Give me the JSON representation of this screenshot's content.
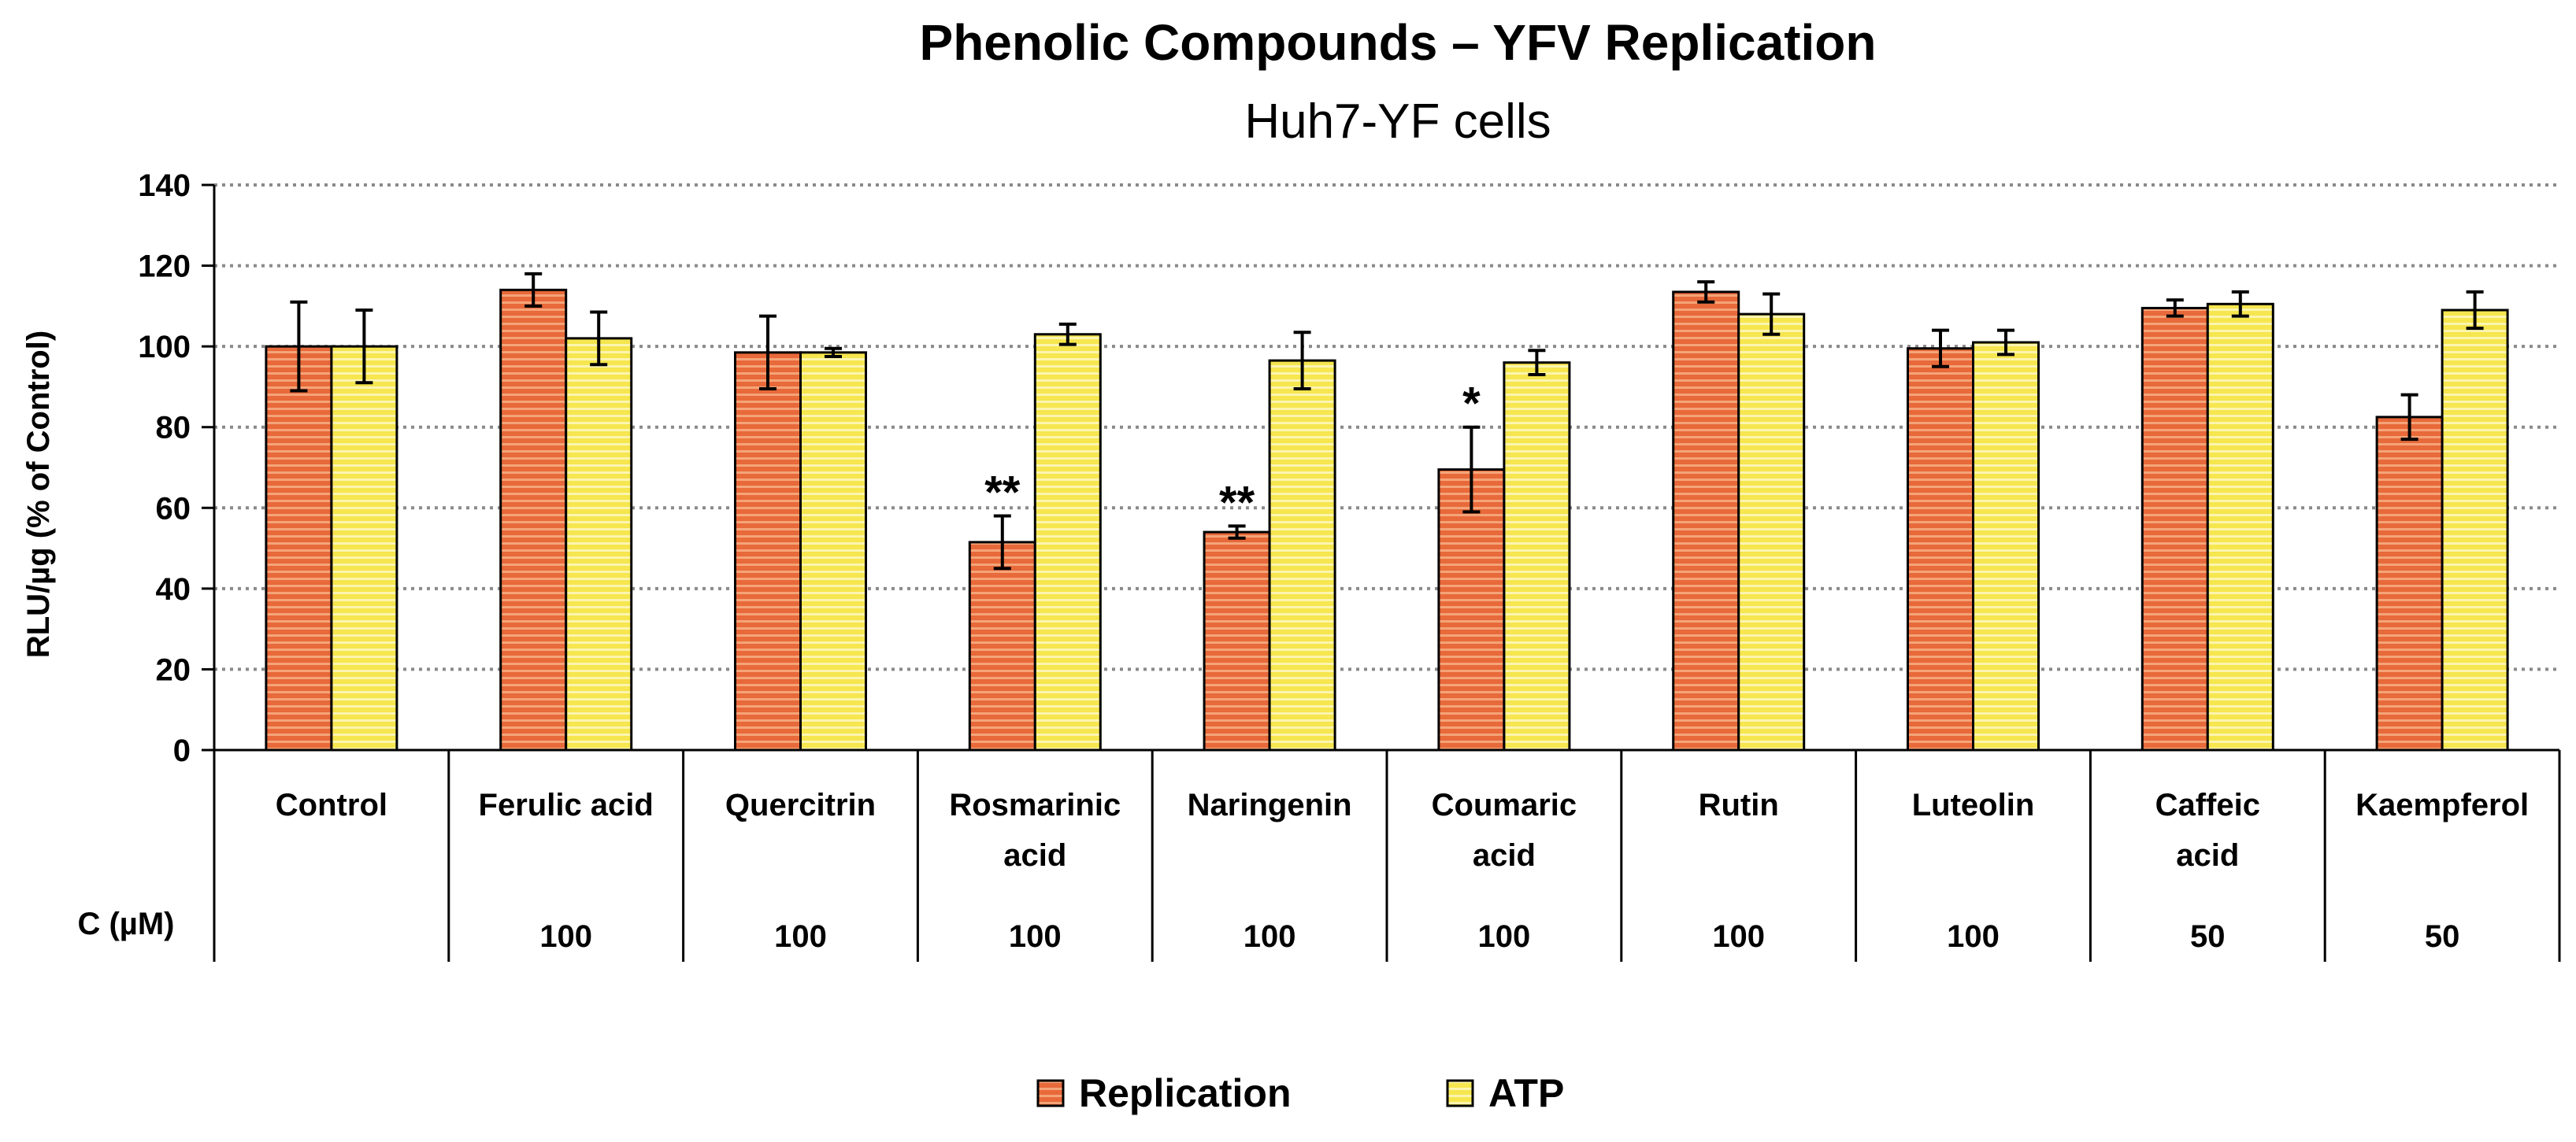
{
  "chart_data": {
    "type": "bar",
    "title": "Phenolic Compounds – YFV Replication",
    "subtitle": "Huh7-YF cells",
    "ylabel": "RLU/µg (% of Control)",
    "ylim": [
      0,
      140
    ],
    "yticks": [
      0,
      20,
      40,
      60,
      80,
      100,
      120,
      140
    ],
    "grid": true,
    "concentration_label": "C (µM)",
    "categories": [
      [
        "Control"
      ],
      [
        "Ferulic acid"
      ],
      [
        "Quercitrin"
      ],
      [
        "Rosmarinic",
        "acid"
      ],
      [
        "Naringenin"
      ],
      [
        "Coumaric",
        "acid"
      ],
      [
        "Rutin"
      ],
      [
        "Luteolin"
      ],
      [
        "Caffeic",
        "acid"
      ],
      [
        "Kaempferol"
      ]
    ],
    "concentrations": [
      "",
      "100",
      "100",
      "100",
      "100",
      "100",
      "100",
      "100",
      "50",
      "50"
    ],
    "series": [
      {
        "name": "Replication",
        "color": "#e8693a",
        "stripe": "#f2a37a",
        "values": [
          100,
          114,
          98.5,
          51.5,
          54,
          69.5,
          113.5,
          99.5,
          109.5,
          82.5
        ],
        "errors": [
          11,
          4,
          9,
          6.5,
          1.5,
          10.5,
          2.5,
          4.5,
          2,
          5.5
        ],
        "annotations": [
          "",
          "",
          "",
          "**",
          "**",
          "*",
          "",
          "",
          "",
          ""
        ]
      },
      {
        "name": "ATP",
        "color": "#f6e64f",
        "stripe": "#fbf4a8",
        "values": [
          100,
          102,
          98.5,
          103,
          96.5,
          96,
          108,
          101,
          110.5,
          109
        ],
        "errors": [
          9,
          6.5,
          1,
          2.5,
          7,
          3,
          5,
          3,
          3,
          4.5
        ],
        "annotations": [
          "",
          "",
          "",
          "",
          "",
          "",
          "",
          "",
          "",
          ""
        ]
      }
    ],
    "legend_position": "bottom-center"
  }
}
